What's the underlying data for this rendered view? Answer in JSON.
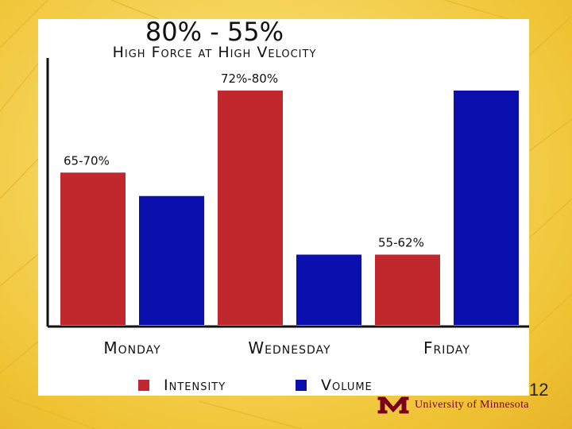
{
  "slide": {
    "page_number": "12",
    "footer_text": "University of Minnesota",
    "logo_name": "umn-m-logo",
    "background_color": "#f3cc45"
  },
  "chart_data": {
    "type": "bar",
    "title": "80% - 55%",
    "subtitle": "High Force at High Velocity",
    "categories": [
      "Monday",
      "Wednesday",
      "Friday"
    ],
    "series": [
      {
        "name": "Intensity",
        "color": "#c0282d",
        "values": [
          65,
          100,
          30
        ]
      },
      {
        "name": "Volume",
        "color": "#0a0fad",
        "values": [
          55,
          30,
          100
        ]
      }
    ],
    "data_labels": [
      "65-70%",
      "72%-80%",
      "55-62%"
    ],
    "ylim": [
      0,
      110
    ],
    "xlabel": "",
    "ylabel": "",
    "legend": "bottom"
  }
}
